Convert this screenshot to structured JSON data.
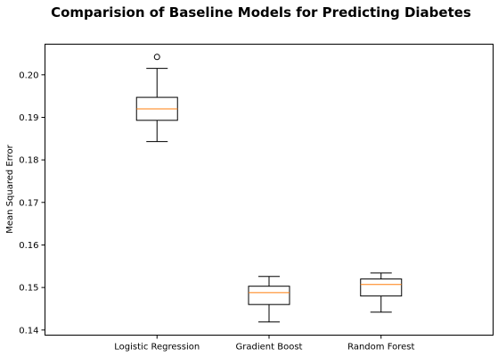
{
  "chart_data": {
    "type": "box",
    "title": "Comparision of Baseline Models for Predicting Diabetes",
    "xlabel": "",
    "ylabel": "Mean Squared Error",
    "categories": [
      "Logistic Regression",
      "Gradient Boost",
      "Random Forest"
    ],
    "yticks": [
      "0.14",
      "0.15",
      "0.16",
      "0.17",
      "0.18",
      "0.19",
      "0.20"
    ],
    "ylim": [
      0.1388,
      0.2072
    ],
    "grid": false,
    "boxes": [
      {
        "category": "Logistic Regression",
        "whisker_low": 0.1843,
        "q1": 0.1893,
        "median": 0.192,
        "q3": 0.1947,
        "whisker_high": 0.2015,
        "outliers": [
          0.2042
        ]
      },
      {
        "category": "Gradient Boost",
        "whisker_low": 0.1419,
        "q1": 0.146,
        "median": 0.1488,
        "q3": 0.1503,
        "whisker_high": 0.1526,
        "outliers": []
      },
      {
        "category": "Random Forest",
        "whisker_low": 0.1442,
        "q1": 0.148,
        "median": 0.1507,
        "q3": 0.152,
        "whisker_high": 0.1534,
        "outliers": []
      }
    ],
    "colors": {
      "box": "#000000",
      "median": "#ff7f0e"
    }
  }
}
